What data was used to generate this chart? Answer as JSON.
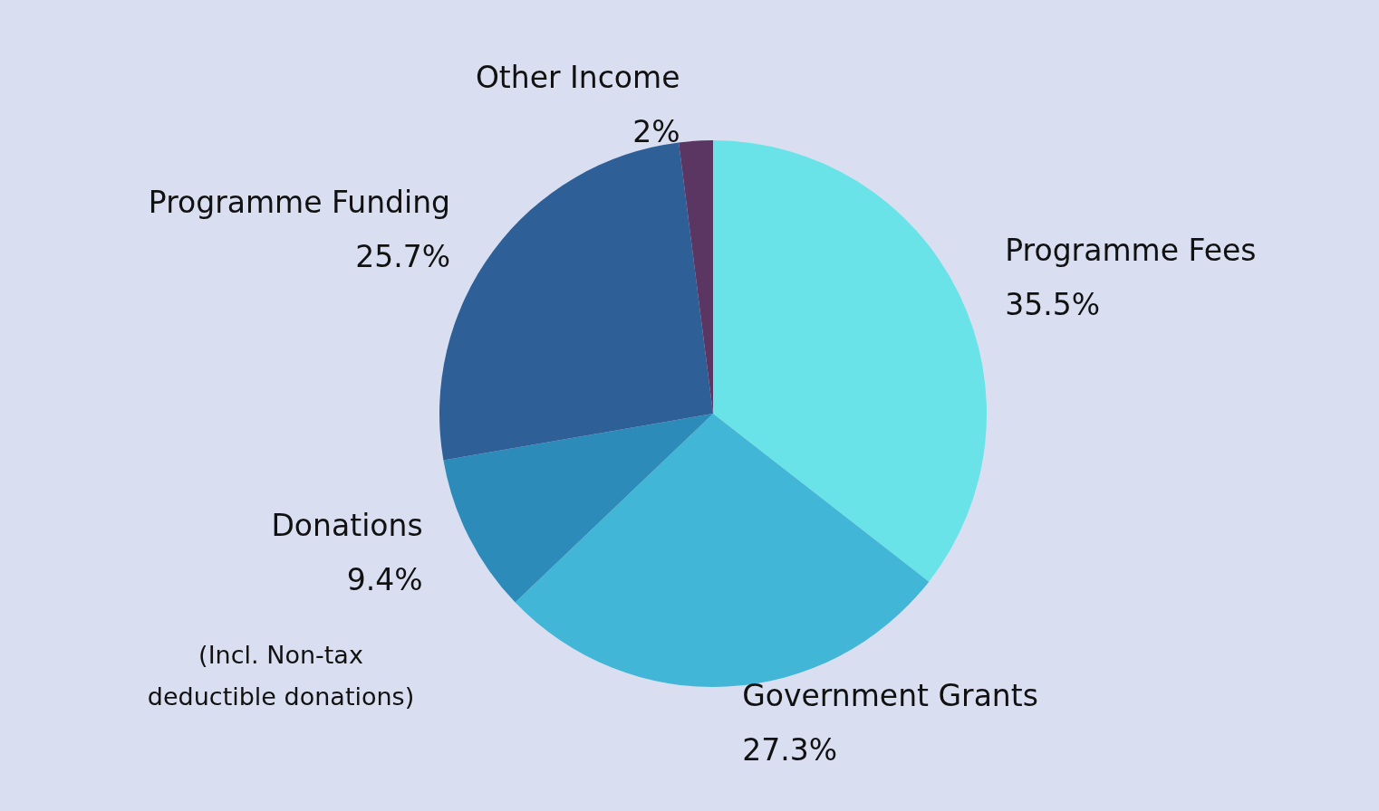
{
  "chart_data": {
    "type": "pie",
    "categories": [
      "Programme Fees",
      "Government Grants",
      "Donations",
      "Programme Funding",
      "Other Income"
    ],
    "values": [
      35.5,
      27.3,
      9.4,
      25.7,
      2
    ],
    "colors": [
      "#6ae3e8",
      "#42b6d6",
      "#2d8bba",
      "#2e5f97",
      "#5b3663"
    ],
    "value_labels": [
      "35.5%",
      "27.3%",
      "9.4%",
      "25.7%",
      "2%"
    ],
    "legend": false,
    "annotations": [
      "(Incl. Non-tax deductible donations)"
    ]
  }
}
